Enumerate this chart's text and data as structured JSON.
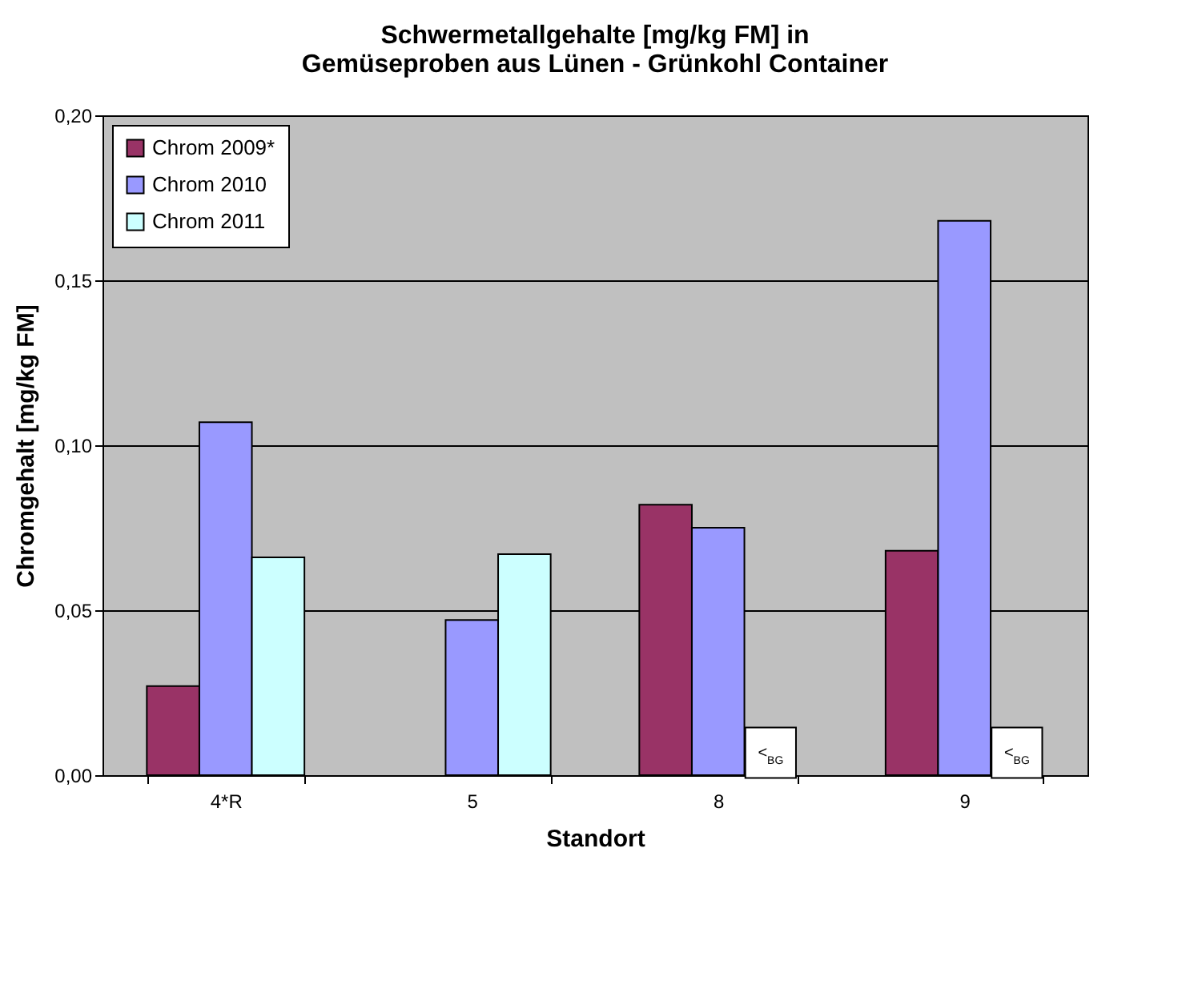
{
  "chart_data": {
    "type": "bar",
    "title": [
      "Schwermetallgehalte [mg/kg FM] in",
      "Gemüseproben aus Lünen - Grünkohl Container"
    ],
    "xlabel": "Standort",
    "ylabel": "Chromgehalt [mg/kg FM]",
    "categories": [
      "4*R",
      "5",
      "8",
      "9"
    ],
    "series": [
      {
        "name": "Chrom 2009*",
        "color": "#993366",
        "values": [
          0.027,
          null,
          0.082,
          0.068
        ]
      },
      {
        "name": "Chrom 2010",
        "color": "#9999ff",
        "values": [
          0.107,
          0.047,
          0.075,
          0.168
        ]
      },
      {
        "name": "Chrom 2011",
        "color": "#ccffff",
        "values": [
          0.066,
          0.067,
          null,
          null
        ]
      }
    ],
    "annotations": [
      {
        "text": "<$_{BG}$",
        "x": "8",
        "y": 0
      },
      {
        "text": "<$_{BG}$",
        "x": "9",
        "y": 0
      }
    ],
    "ylim": [
      0,
      0.2
    ],
    "yticks": [
      {
        "value": 0,
        "label": "0,00"
      },
      {
        "value": 0.05,
        "label": "0,05"
      },
      {
        "value": 0.1,
        "label": "0,10"
      },
      {
        "value": 0.15,
        "label": "0,15"
      },
      {
        "value": 0.2,
        "label": "0,20"
      }
    ],
    "grid": "y",
    "legend": "top left"
  }
}
